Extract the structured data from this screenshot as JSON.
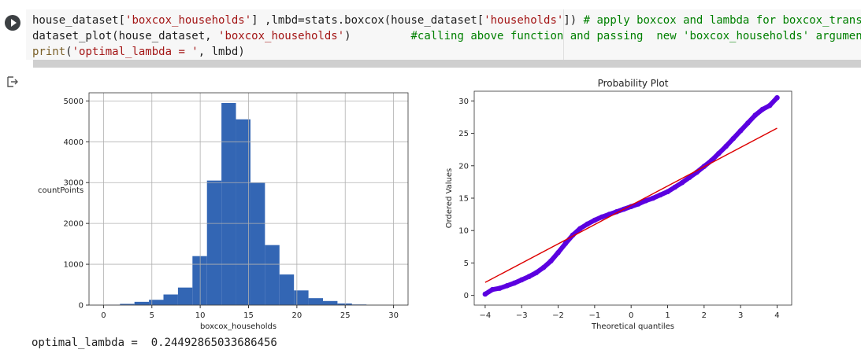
{
  "code": {
    "line1": {
      "p1": "house_dataset[",
      "p2": "'boxcox_households'",
      "p3": "] ,lmbd=stats.boxcox(house_dataset[",
      "p4": "'households'",
      "p5": "]) ",
      "p6": "# apply boxcox and lambda for boxcox_trans"
    },
    "line2": {
      "p1": "dataset_plot(house_dataset, ",
      "p2": "'boxcox_households'",
      "p3": ")         ",
      "p4": "#calling above function and passing  new 'boxcox_households' argumen"
    },
    "line3": {
      "p1": "print",
      "p2": "(",
      "p3": "'optimal_lambda = '",
      "p4": ", lmbd)"
    }
  },
  "output": {
    "text": "optimal_lambda =  0.24492865033686456"
  },
  "chart_data": [
    {
      "type": "bar",
      "title": "",
      "xlabel": "boxcox_households",
      "ylabel": "countPoints",
      "xlim": [
        -1.5,
        31.5
      ],
      "ylim": [
        0,
        5200
      ],
      "xticks": [
        0,
        5,
        10,
        15,
        20,
        25,
        30
      ],
      "yticks": [
        0,
        1000,
        2000,
        3000,
        4000,
        5000
      ],
      "bins": [
        {
          "x0": 0.2,
          "x1": 1.7,
          "value": 10
        },
        {
          "x0": 1.7,
          "x1": 3.2,
          "value": 30
        },
        {
          "x0": 3.2,
          "x1": 4.7,
          "value": 80
        },
        {
          "x0": 4.7,
          "x1": 6.2,
          "value": 130
        },
        {
          "x0": 6.2,
          "x1": 7.7,
          "value": 260
        },
        {
          "x0": 7.7,
          "x1": 9.2,
          "value": 430
        },
        {
          "x0": 9.2,
          "x1": 10.7,
          "value": 1200
        },
        {
          "x0": 10.7,
          "x1": 12.2,
          "value": 3050
        },
        {
          "x0": 12.2,
          "x1": 13.7,
          "value": 4950
        },
        {
          "x0": 13.7,
          "x1": 15.2,
          "value": 4550
        },
        {
          "x0": 15.2,
          "x1": 16.7,
          "value": 3000
        },
        {
          "x0": 16.7,
          "x1": 18.2,
          "value": 1470
        },
        {
          "x0": 18.2,
          "x1": 19.7,
          "value": 750
        },
        {
          "x0": 19.7,
          "x1": 21.2,
          "value": 360
        },
        {
          "x0": 21.2,
          "x1": 22.7,
          "value": 170
        },
        {
          "x0": 22.7,
          "x1": 24.2,
          "value": 100
        },
        {
          "x0": 24.2,
          "x1": 25.7,
          "value": 40
        },
        {
          "x0": 25.7,
          "x1": 27.2,
          "value": 15
        },
        {
          "x0": 27.2,
          "x1": 28.7,
          "value": 5
        },
        {
          "x0": 28.7,
          "x1": 30.2,
          "value": 3
        }
      ],
      "grid": true,
      "colors": {
        "bar": "#3366b4"
      }
    },
    {
      "type": "scatter",
      "title": "Probability Plot",
      "xlabel": "Theoretical quantiles",
      "ylabel": "Ordered Values",
      "xlim": [
        -4.3,
        4.4
      ],
      "ylim": [
        -1.5,
        31.5
      ],
      "xticks": [
        -4,
        -3,
        -2,
        -1,
        0,
        1,
        2,
        3,
        4
      ],
      "yticks": [
        0,
        5,
        10,
        15,
        20,
        25,
        30
      ],
      "fit_line": {
        "x": [
          -4,
          4
        ],
        "y": [
          2.0,
          25.8
        ]
      },
      "points": {
        "x": [
          -4.0,
          -3.8,
          -3.6,
          -3.4,
          -3.2,
          -3.0,
          -2.8,
          -2.6,
          -2.4,
          -2.2,
          -2.0,
          -1.8,
          -1.6,
          -1.4,
          -1.2,
          -1.0,
          -0.8,
          -0.6,
          -0.4,
          -0.2,
          0.0,
          0.2,
          0.4,
          0.6,
          0.8,
          1.0,
          1.2,
          1.4,
          1.6,
          1.8,
          2.0,
          2.2,
          2.4,
          2.6,
          2.8,
          3.0,
          3.2,
          3.4,
          3.6,
          3.8,
          4.0
        ],
        "y": [
          0.2,
          0.9,
          1.1,
          1.5,
          1.9,
          2.4,
          2.9,
          3.5,
          4.3,
          5.3,
          6.6,
          8.0,
          9.3,
          10.3,
          11.0,
          11.6,
          12.1,
          12.5,
          12.9,
          13.3,
          13.7,
          14.1,
          14.6,
          15.0,
          15.5,
          16.0,
          16.7,
          17.4,
          18.2,
          19.0,
          19.9,
          20.8,
          21.9,
          23.0,
          24.2,
          25.4,
          26.6,
          27.8,
          28.7,
          29.3,
          30.5
        ]
      },
      "grid": false,
      "colors": {
        "points": "#5b00e0",
        "line": "#dd0000"
      }
    }
  ]
}
